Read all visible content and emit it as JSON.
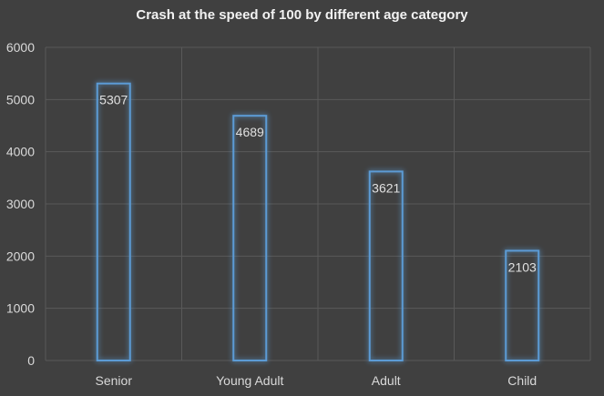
{
  "chart_data": {
    "type": "bar",
    "title": "Crash at the speed of 100 by different age category",
    "categories": [
      "Senior",
      "Young Adult",
      "Adult",
      "Child"
    ],
    "values": [
      5307,
      4689,
      3621,
      2103
    ],
    "data_labels": [
      "5307",
      "4689",
      "3621",
      "2103"
    ],
    "ylim": [
      0,
      6000
    ],
    "yticks": [
      0,
      1000,
      2000,
      3000,
      4000,
      5000,
      6000
    ],
    "ytick_labels": [
      "0",
      "1000",
      "2000",
      "3000",
      "4000",
      "5000",
      "6000"
    ],
    "xlabel": "",
    "ylabel": "",
    "grid": true,
    "legend": "none",
    "bar_style": "outline-glow",
    "colors": {
      "background": "#404040",
      "bar_outline": "#5b9bd5",
      "gridline": "#595959",
      "text": "#d9d9d9",
      "title": "#f2f2f2"
    }
  }
}
